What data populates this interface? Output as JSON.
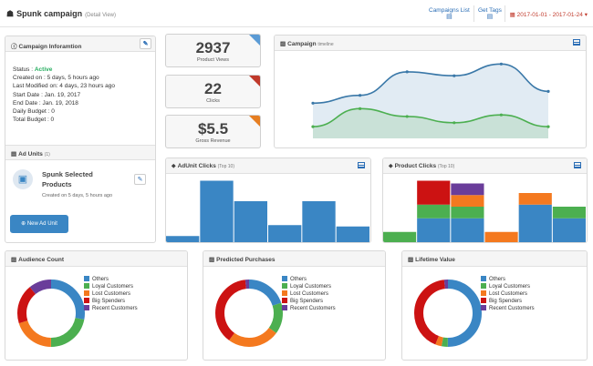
{
  "header": {
    "title": "Spunk campaign",
    "subtitle": "(Detail View)",
    "links": [
      {
        "label": "Campaigns List"
      },
      {
        "label": "Get Tags"
      }
    ],
    "date_range": "2017-01-01 - 2017-01-24"
  },
  "info": {
    "title": "Campaign Inforamtion",
    "status_label": "Status :",
    "status_value": "Active",
    "lines": [
      "Created on : 5 days, 5 hours ago",
      "Last Modified on: 4 days, 23 hours ago",
      "Start Date : Jan. 19, 2017",
      "End Date : Jan. 19, 2018",
      "Daily Budget : 0",
      "Total Budget : 0"
    ],
    "ad_units_title": "Ad Units",
    "ad_units_count": "(1)",
    "ad_unit": {
      "name": "Spunk Selected Products",
      "created": "Created on 5 days, 5 hours ago"
    },
    "new_ad_unit_label": "New Ad Unit"
  },
  "stats": [
    {
      "value": "2937",
      "label": "Product Views",
      "color": "#5b9bd5"
    },
    {
      "value": "22",
      "label": "Clicks",
      "color": "#c0392b"
    },
    {
      "value": "$5.5",
      "label": "Gross Revenue",
      "color": "#e67e22"
    }
  ],
  "timeline": {
    "title": "Campaign",
    "subtitle": "timeline"
  },
  "adunit_clicks": {
    "title": "AdUnit Clicks",
    "subtitle": "(Top 10)"
  },
  "product_clicks": {
    "title": "Product Clicks",
    "subtitle": "(Top 10)"
  },
  "donuts": [
    {
      "title": "Audience Count"
    },
    {
      "title": "Predicted Purchases"
    },
    {
      "title": "Lifetime Value"
    }
  ],
  "legend_labels": [
    "Others",
    "Loyal Customers",
    "Lost Customers",
    "Big Spenders",
    "Recent Customers"
  ],
  "colors": {
    "blue": "#3a86c4",
    "green": "#4caf50",
    "orange": "#f4791f",
    "red": "#cc1212",
    "purple": "#6a3d9a",
    "accent": "#2a6db5"
  },
  "chart_data": [
    {
      "type": "area",
      "series": [
        {
          "values": [
            0.45,
            0.55,
            0.85,
            0.8,
            0.95,
            0.6
          ]
        },
        {
          "values": [
            0.15,
            0.38,
            0.28,
            0.2,
            0.3,
            0.15
          ]
        }
      ],
      "grid": false
    },
    {
      "type": "bar",
      "values": [
        0.09,
        0.9,
        0.6,
        0.25,
        0.6,
        0.23
      ]
    },
    {
      "type": "bar",
      "stacked": true,
      "series": [
        {
          "name": "Others",
          "values": [
            0,
            0.35,
            0.35,
            0,
            0.55,
            0.35
          ]
        },
        {
          "name": "Loyal Customers",
          "values": [
            0.15,
            0.2,
            0.17,
            0,
            0,
            0.17
          ]
        },
        {
          "name": "Lost Customers",
          "values": [
            0,
            0,
            0.17,
            0.15,
            0.17,
            0
          ]
        },
        {
          "name": "Big Spenders",
          "values": [
            0,
            0.35,
            0,
            0,
            0,
            0
          ]
        },
        {
          "name": "Recent Customers",
          "values": [
            0,
            0,
            0.17,
            0,
            0,
            0
          ]
        }
      ]
    },
    {
      "type": "pie",
      "labels": [
        "Others",
        "Loyal Customers",
        "Lost Customers",
        "Big Spenders",
        "Recent Customers"
      ],
      "values": [
        28,
        22,
        20,
        19,
        11
      ]
    },
    {
      "type": "pie",
      "labels": [
        "Others",
        "Loyal Customers",
        "Lost Customers",
        "Big Spenders",
        "Recent Customers"
      ],
      "values": [
        20,
        15,
        25,
        38,
        2
      ]
    },
    {
      "type": "pie",
      "labels": [
        "Others",
        "Loyal Customers",
        "Lost Customers",
        "Big Spenders",
        "Recent Customers"
      ],
      "values": [
        50,
        3,
        3,
        42,
        2
      ]
    }
  ]
}
